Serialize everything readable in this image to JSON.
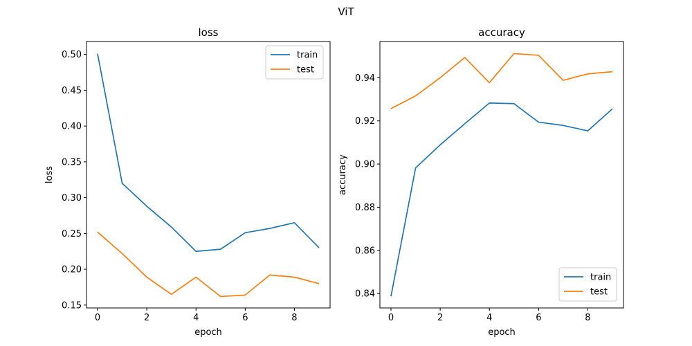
{
  "figure": {
    "title": "ViT"
  },
  "colors": {
    "train": "#1f77b4",
    "test": "#ff7f0e",
    "axis": "#000000",
    "legend_border": "#cccccc"
  },
  "chart_data": [
    {
      "type": "line",
      "title": "loss",
      "xlabel": "epoch",
      "ylabel": "loss",
      "x": [
        0,
        1,
        2,
        3,
        4,
        5,
        6,
        7,
        8,
        9
      ],
      "xlim": [
        -0.45,
        9.45
      ],
      "ylim": [
        0.146,
        0.518
      ],
      "xticks": [
        0,
        2,
        4,
        6,
        8
      ],
      "xtick_labels": [
        "0",
        "2",
        "4",
        "6",
        "8"
      ],
      "yticks": [
        0.15,
        0.2,
        0.25,
        0.3,
        0.35,
        0.4,
        0.45,
        0.5
      ],
      "ytick_labels": [
        "0.15",
        "0.20",
        "0.25",
        "0.30",
        "0.35",
        "0.40",
        "0.45",
        "0.50"
      ],
      "legend_position": "top-right",
      "series": [
        {
          "name": "train",
          "values": [
            0.501,
            0.32,
            0.288,
            0.259,
            0.225,
            0.228,
            0.251,
            0.257,
            0.265,
            0.23
          ]
        },
        {
          "name": "test",
          "values": [
            0.252,
            0.222,
            0.189,
            0.165,
            0.189,
            0.162,
            0.164,
            0.192,
            0.189,
            0.18
          ]
        }
      ]
    },
    {
      "type": "line",
      "title": "accuracy",
      "xlabel": "epoch",
      "ylabel": "accuracy",
      "x": [
        0,
        1,
        2,
        3,
        4,
        5,
        6,
        7,
        8,
        9
      ],
      "xlim": [
        -0.45,
        9.45
      ],
      "ylim": [
        0.8333,
        0.9568
      ],
      "xticks": [
        0,
        2,
        4,
        6,
        8
      ],
      "xtick_labels": [
        "0",
        "2",
        "4",
        "6",
        "8"
      ],
      "yticks": [
        0.84,
        0.86,
        0.88,
        0.9,
        0.92,
        0.94
      ],
      "ytick_labels": [
        "0.84",
        "0.86",
        "0.88",
        "0.90",
        "0.92",
        "0.94"
      ],
      "legend_position": "bottom-right",
      "series": [
        {
          "name": "train",
          "values": [
            0.8387,
            0.8982,
            0.9089,
            0.9187,
            0.9283,
            0.928,
            0.9194,
            0.9179,
            0.9154,
            0.9256
          ]
        },
        {
          "name": "test",
          "values": [
            0.9257,
            0.9316,
            0.94,
            0.9494,
            0.9377,
            0.9512,
            0.9504,
            0.9388,
            0.9418,
            0.9428
          ]
        }
      ]
    }
  ]
}
